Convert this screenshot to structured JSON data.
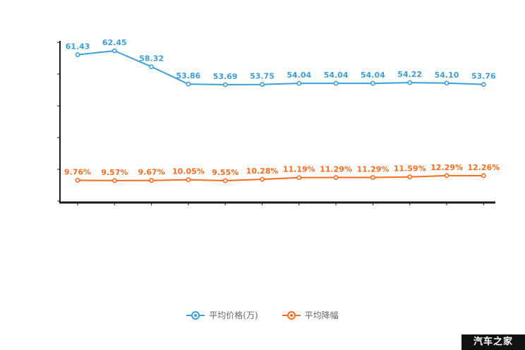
{
  "watermark": {
    "text": "汽车之家"
  },
  "legend": {
    "items": [
      {
        "label": "平均价格(万)",
        "color": "#3b9fd8"
      },
      {
        "label": "平均降幅",
        "color": "#ff6a1c"
      }
    ]
  },
  "chart_data": {
    "type": "line",
    "title": "",
    "xlabel": "",
    "ylabel": "",
    "x_tick_labels": [],
    "point_count": 12,
    "grid": false,
    "legend_position": "bottom",
    "series": [
      {
        "name": "平均价格(万)",
        "color": "#3b9fd8",
        "values": [
          61.43,
          62.45,
          58.32,
          53.86,
          53.69,
          53.75,
          54.04,
          54.04,
          54.04,
          54.22,
          54.1,
          53.76
        ],
        "labels": [
          "61.43",
          "62.45",
          "58.32",
          "53.86",
          "53.69",
          "53.75",
          "54.04",
          "54.04",
          "54.04",
          "54.22",
          "54.10",
          "53.76"
        ]
      },
      {
        "name": "平均降幅",
        "color": "#ff6a1c",
        "values": [
          9.76,
          9.57,
          9.67,
          10.05,
          9.55,
          10.28,
          11.19,
          11.29,
          11.29,
          11.59,
          12.29,
          12.26
        ],
        "labels": [
          "9.76%",
          "9.57%",
          "9.67%",
          "10.05%",
          "9.55%",
          "10.28%",
          "11.19%",
          "11.29%",
          "11.29%",
          "11.59%",
          "12.29%",
          "12.26%"
        ]
      }
    ]
  }
}
